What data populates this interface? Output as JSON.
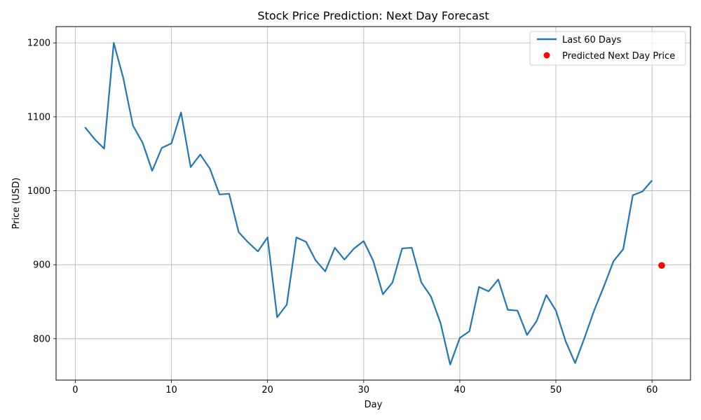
{
  "chart_data": {
    "type": "line",
    "title": "Stock Price Prediction: Next Day Forecast",
    "xlabel": "Day",
    "ylabel": "Price (USD)",
    "xlim": [
      -2,
      64
    ],
    "ylim": [
      744,
      1222
    ],
    "x_ticks": [
      0,
      10,
      20,
      30,
      40,
      50,
      60
    ],
    "y_ticks": [
      800,
      900,
      1000,
      1100,
      1200
    ],
    "grid": true,
    "legend_position": "top-right",
    "series": [
      {
        "name": "Last 60 Days",
        "kind": "line",
        "color": "#1f77b4",
        "x": [
          1,
          2,
          3,
          4,
          5,
          6,
          7,
          8,
          9,
          10,
          11,
          12,
          13,
          14,
          15,
          16,
          17,
          18,
          19,
          20,
          21,
          22,
          23,
          24,
          25,
          26,
          27,
          28,
          29,
          30,
          31,
          32,
          33,
          34,
          35,
          36,
          37,
          38,
          39,
          40,
          41,
          42,
          43,
          44,
          45,
          46,
          47,
          48,
          49,
          50,
          51,
          52,
          53,
          54,
          55,
          56,
          57,
          58,
          59,
          60
        ],
        "values": [
          1086,
          1070,
          1057,
          1200,
          1152,
          1088,
          1065,
          1027,
          1058,
          1064,
          1106,
          1032,
          1049,
          1030,
          995,
          996,
          944,
          930,
          918,
          937,
          829,
          846,
          937,
          931,
          906,
          891,
          923,
          907,
          922,
          932,
          905,
          860,
          876,
          922,
          923,
          876,
          857,
          821,
          765,
          801,
          810,
          870,
          864,
          880,
          839,
          838,
          805,
          824,
          859,
          838,
          797,
          767,
          802,
          839,
          871,
          905,
          921,
          994,
          999,
          1014
        ]
      },
      {
        "name": "Predicted Next Day Price",
        "kind": "scatter",
        "color": "#ff0000",
        "x": [
          61
        ],
        "values": [
          899
        ]
      }
    ]
  }
}
